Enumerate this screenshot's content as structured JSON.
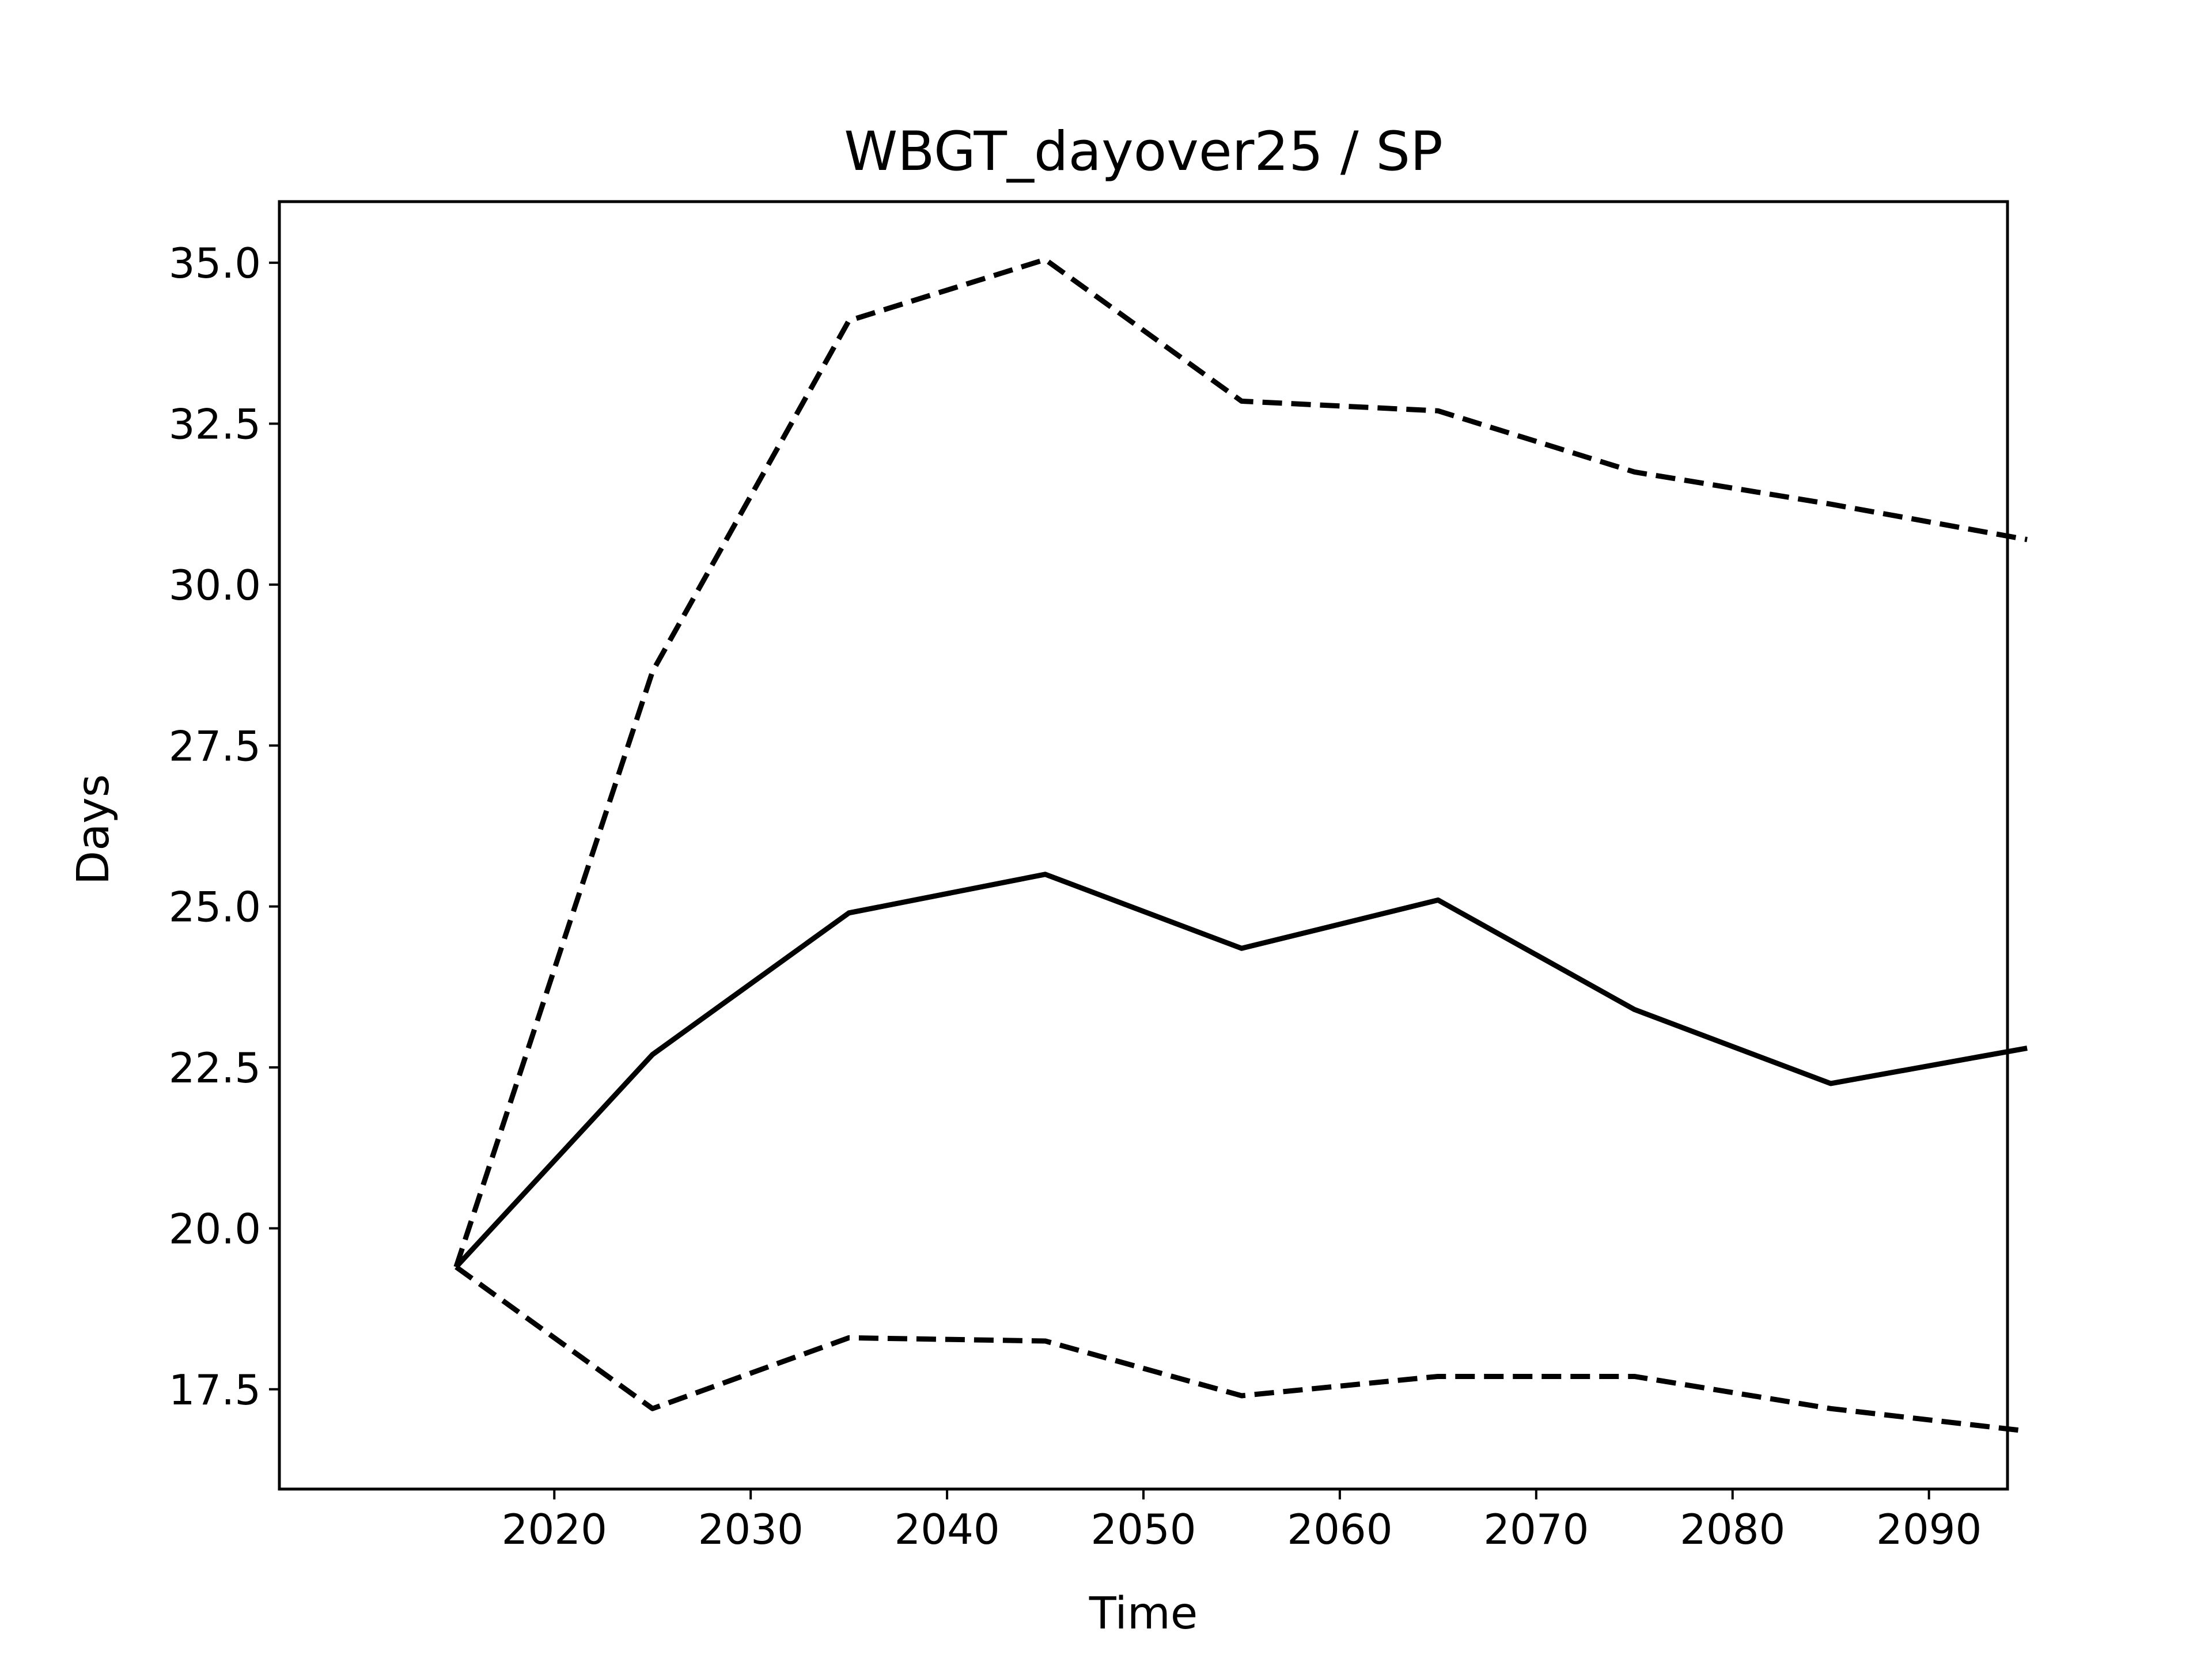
{
  "chart_data": {
    "type": "line",
    "title": "WBGT_dayover25 / SP",
    "xlabel": "Time",
    "ylabel": "Days",
    "x": [
      2015,
      2025,
      2035,
      2045,
      2055,
      2065,
      2075,
      2085,
      2095
    ],
    "xlim": [
      2006,
      2094
    ],
    "ylim": [
      15.95,
      35.95
    ],
    "x_ticks": [
      2020,
      2030,
      2040,
      2050,
      2060,
      2070,
      2080,
      2090
    ],
    "y_ticks": [
      17.5,
      20.0,
      22.5,
      25.0,
      27.5,
      30.0,
      32.5,
      35.0
    ],
    "x_tick_labels": [
      "2020",
      "2030",
      "2040",
      "2050",
      "2060",
      "2070",
      "2080",
      "2090"
    ],
    "y_tick_labels": [
      "17.5",
      "20.0",
      "22.5",
      "25.0",
      "27.5",
      "30.0",
      "32.5",
      "35.0"
    ],
    "grid": false,
    "legend": "none",
    "series": [
      {
        "values": [
          19.4,
          28.65,
          34.1,
          35.05,
          32.85,
          32.7,
          31.75,
          31.25,
          30.7
        ],
        "style": "dashed",
        "color": "#000000"
      },
      {
        "values": [
          19.4,
          22.7,
          24.9,
          25.5,
          24.35,
          25.1,
          23.4,
          22.25,
          22.8
        ],
        "style": "solid",
        "color": "#000000"
      },
      {
        "values": [
          19.4,
          17.2,
          18.3,
          18.25,
          17.4,
          17.7,
          17.7,
          17.2,
          16.85
        ],
        "style": "dashed",
        "color": "#000000"
      }
    ]
  }
}
